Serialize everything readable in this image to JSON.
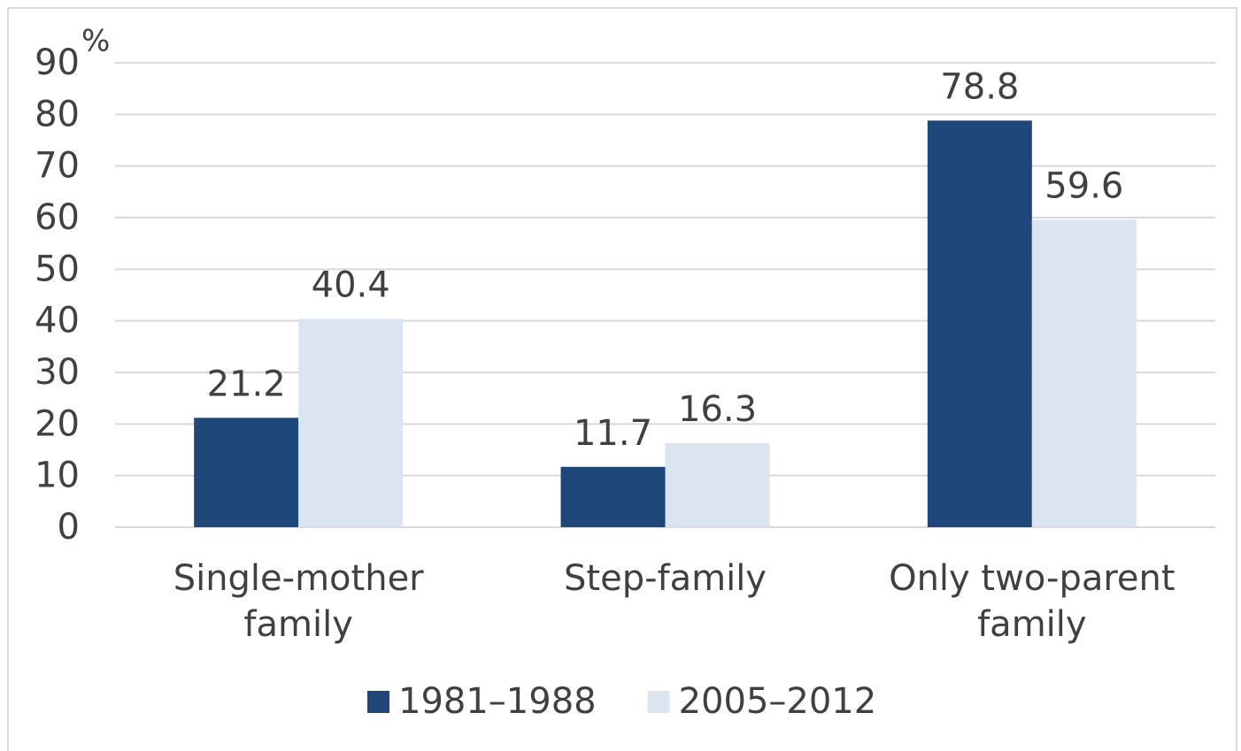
{
  "chart_data": {
    "type": "bar",
    "ylabel": "%",
    "categories": [
      [
        "Single-mother",
        "family"
      ],
      [
        "Step-family"
      ],
      [
        "Only two-parent",
        "family"
      ]
    ],
    "series": [
      {
        "name": "1981–1988",
        "color": "#1f477a",
        "values": [
          21.2,
          11.7,
          78.8
        ]
      },
      {
        "name": "2005–2012",
        "color": "#dbe5f1",
        "values": [
          40.4,
          16.3,
          59.6
        ]
      }
    ],
    "ylim": [
      0,
      90
    ],
    "yticks": [
      0,
      10,
      20,
      30,
      40,
      50,
      60,
      70,
      80,
      90
    ],
    "grid": true
  }
}
